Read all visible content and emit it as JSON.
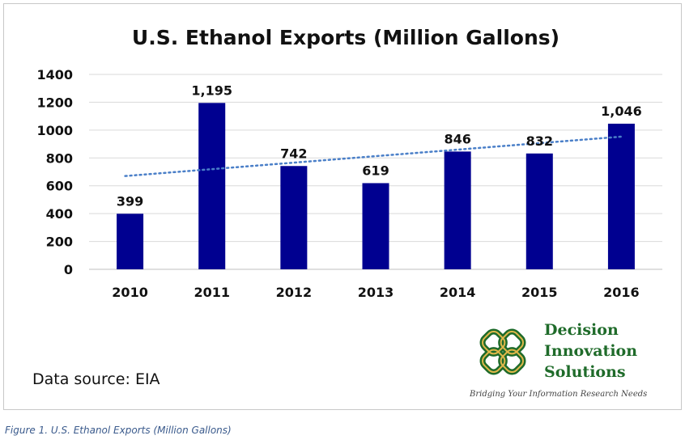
{
  "caption": "Figure 1. U.S. Ethanol Exports (Million Gallons)",
  "source_note": "Data source: EIA",
  "logo": {
    "lines": [
      "Decision",
      "Innovation",
      "Solutions"
    ],
    "tagline": "Bridging Your Information Research Needs",
    "colors": {
      "green": "#1f6b2a",
      "gold": "#e0b84a"
    }
  },
  "colors": {
    "bar": "#000090",
    "trend": "#4a7fc8",
    "grid": "#d9d9d9"
  },
  "chart_data": {
    "type": "bar",
    "title": "U.S. Ethanol Exports (Million Gallons)",
    "xlabel": "",
    "ylabel": "",
    "categories": [
      "2010",
      "2011",
      "2012",
      "2013",
      "2014",
      "2015",
      "2016"
    ],
    "values": [
      399,
      1195,
      742,
      619,
      846,
      832,
      1046
    ],
    "data_labels": [
      "399",
      "1,195",
      "742",
      "619",
      "846",
      "832",
      "1,046"
    ],
    "ylim": [
      0,
      1400
    ],
    "yticks": [
      0,
      200,
      400,
      600,
      800,
      1000,
      1200,
      1400
    ],
    "grid": true,
    "trendline": {
      "type": "linear",
      "style": "dotted",
      "start": 670,
      "end": 953
    }
  }
}
